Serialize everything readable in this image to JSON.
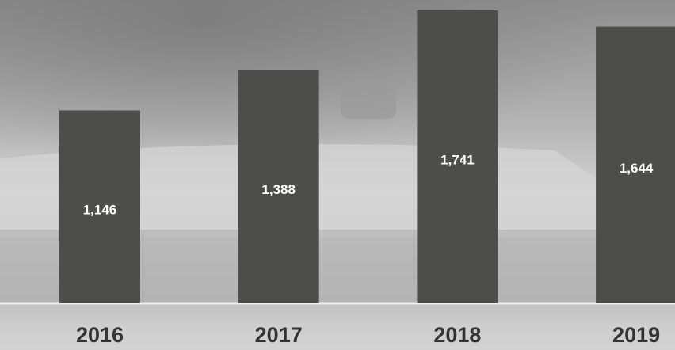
{
  "chart_data": {
    "type": "bar",
    "categories": [
      "2016",
      "2017",
      "2018",
      "2019"
    ],
    "values": [
      1146,
      1388,
      1741,
      1644
    ],
    "value_labels": [
      "1,146",
      "1,388",
      "1,741",
      "1,644"
    ],
    "color": "#4d4e4c"
  }
}
